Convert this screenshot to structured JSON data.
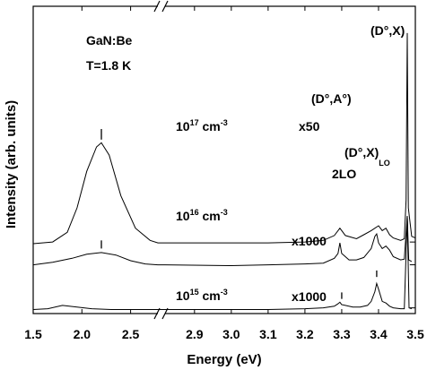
{
  "chart_data": {
    "type": "line",
    "xlabel": "Energy (eV)",
    "ylabel": "Intensity (arb. units)",
    "x_segments": [
      {
        "range": [
          1.5,
          2.78
        ],
        "ticks": [
          "1.5",
          "2.0",
          "2.5"
        ],
        "tick_values": [
          1.5,
          2.0,
          2.5
        ]
      },
      {
        "range": [
          2.82,
          3.5
        ],
        "ticks": [
          "2.9",
          "3.0",
          "3.1",
          "3.2",
          "3.3",
          "3.4",
          "3.5"
        ],
        "tick_values": [
          2.9,
          3.0,
          3.1,
          3.2,
          3.3,
          3.4,
          3.5
        ]
      }
    ],
    "axis_break_marker": "//",
    "sample_label": "GaN:Be",
    "temperature_label": "T=1.8 K",
    "series": [
      {
        "concentration_base": "10",
        "concentration_exp": "17",
        "concentration_unit": "cm",
        "concentration_unit_exp": "-3",
        "scale_factor": "x50",
        "baseline": 0.86,
        "points": [
          [
            1.5,
            0.86
          ],
          [
            1.7,
            0.88
          ],
          [
            1.85,
            1.0
          ],
          [
            1.95,
            1.3
          ],
          [
            2.05,
            1.75
          ],
          [
            2.15,
            2.05
          ],
          [
            2.2,
            2.1
          ],
          [
            2.28,
            1.95
          ],
          [
            2.4,
            1.45
          ],
          [
            2.55,
            1.05
          ],
          [
            2.7,
            0.9
          ],
          [
            2.78,
            0.87
          ],
          [
            2.82,
            0.87
          ],
          [
            3.0,
            0.87
          ],
          [
            3.1,
            0.87
          ],
          [
            3.2,
            0.88
          ],
          [
            3.25,
            0.9
          ],
          [
            3.28,
            0.96
          ],
          [
            3.295,
            1.05
          ],
          [
            3.31,
            0.96
          ],
          [
            3.34,
            0.92
          ],
          [
            3.36,
            0.97
          ],
          [
            3.38,
            1.02
          ],
          [
            3.4,
            1.08
          ],
          [
            3.41,
            1.02
          ],
          [
            3.42,
            1.05
          ],
          [
            3.43,
            0.97
          ],
          [
            3.44,
            0.93
          ],
          [
            3.46,
            0.9
          ],
          [
            3.47,
            0.92
          ],
          [
            3.475,
            1.4
          ],
          [
            3.478,
            3.45
          ],
          [
            3.481,
            1.3
          ],
          [
            3.49,
            0.95
          ],
          [
            3.5,
            0.93
          ]
        ]
      },
      {
        "concentration_base": "10",
        "concentration_exp": "16",
        "concentration_unit": "cm",
        "concentration_unit_exp": "-3",
        "scale_factor": "x1000",
        "baseline": 0.58,
        "points": [
          [
            1.5,
            0.6
          ],
          [
            1.7,
            0.63
          ],
          [
            1.9,
            0.68
          ],
          [
            2.05,
            0.73
          ],
          [
            2.2,
            0.75
          ],
          [
            2.35,
            0.72
          ],
          [
            2.5,
            0.65
          ],
          [
            2.65,
            0.61
          ],
          [
            2.78,
            0.6
          ],
          [
            2.82,
            0.6
          ],
          [
            3.0,
            0.59
          ],
          [
            3.1,
            0.6
          ],
          [
            3.2,
            0.61
          ],
          [
            3.25,
            0.62
          ],
          [
            3.28,
            0.68
          ],
          [
            3.29,
            0.74
          ],
          [
            3.295,
            0.87
          ],
          [
            3.3,
            0.74
          ],
          [
            3.32,
            0.66
          ],
          [
            3.34,
            0.66
          ],
          [
            3.36,
            0.69
          ],
          [
            3.38,
            0.8
          ],
          [
            3.39,
            0.95
          ],
          [
            3.395,
            0.98
          ],
          [
            3.4,
            0.87
          ],
          [
            3.41,
            0.8
          ],
          [
            3.42,
            0.83
          ],
          [
            3.43,
            0.78
          ],
          [
            3.44,
            0.7
          ],
          [
            3.46,
            0.66
          ],
          [
            3.47,
            0.67
          ],
          [
            3.478,
            1.2
          ],
          [
            3.482,
            0.66
          ],
          [
            3.49,
            0.64
          ]
        ]
      },
      {
        "concentration_base": "10",
        "concentration_exp": "15",
        "concentration_unit": "cm",
        "concentration_unit_exp": "-3",
        "scale_factor": "x1000",
        "baseline": 0.05,
        "points": [
          [
            1.5,
            0.05
          ],
          [
            1.65,
            0.06
          ],
          [
            1.8,
            0.1
          ],
          [
            1.95,
            0.08
          ],
          [
            2.1,
            0.06
          ],
          [
            2.3,
            0.05
          ],
          [
            2.5,
            0.05
          ],
          [
            2.78,
            0.05
          ],
          [
            2.82,
            0.05
          ],
          [
            3.0,
            0.05
          ],
          [
            3.1,
            0.05
          ],
          [
            3.2,
            0.06
          ],
          [
            3.25,
            0.07
          ],
          [
            3.28,
            0.09
          ],
          [
            3.29,
            0.12
          ],
          [
            3.295,
            0.14
          ],
          [
            3.3,
            0.11
          ],
          [
            3.33,
            0.08
          ],
          [
            3.35,
            0.08
          ],
          [
            3.37,
            0.1
          ],
          [
            3.38,
            0.15
          ],
          [
            3.39,
            0.27
          ],
          [
            3.395,
            0.37
          ],
          [
            3.4,
            0.3
          ],
          [
            3.41,
            0.15
          ],
          [
            3.42,
            0.13
          ],
          [
            3.43,
            0.09
          ],
          [
            3.44,
            0.07
          ],
          [
            3.46,
            0.06
          ],
          [
            3.47,
            0.06
          ],
          [
            3.478,
            1.2
          ],
          [
            3.483,
            0.07
          ],
          [
            3.49,
            0.06
          ]
        ]
      }
    ],
    "annotations": [
      {
        "label": "(D°,X)",
        "sub": "",
        "x": 3.478,
        "y": 3.65
      },
      {
        "label": "(D°,A°)",
        "sub": "",
        "x": 3.3,
        "y": 1.45
      },
      {
        "label": "(D°,X)",
        "sub": "LO",
        "x": 3.395,
        "y": 1.25
      },
      {
        "label": "2LO",
        "sub": "",
        "x": 3.3,
        "y": 1.05
      }
    ],
    "peak_markers": [
      {
        "x": 2.2,
        "y_from": 2.14,
        "y_to": 2.27
      },
      {
        "x": 2.2,
        "y_from": 0.8,
        "y_to": 0.9
      },
      {
        "x": 3.3,
        "y_from": 0.18,
        "y_to": 0.26
      },
      {
        "x": 3.395,
        "y_from": 0.45,
        "y_to": 0.53
      }
    ]
  }
}
